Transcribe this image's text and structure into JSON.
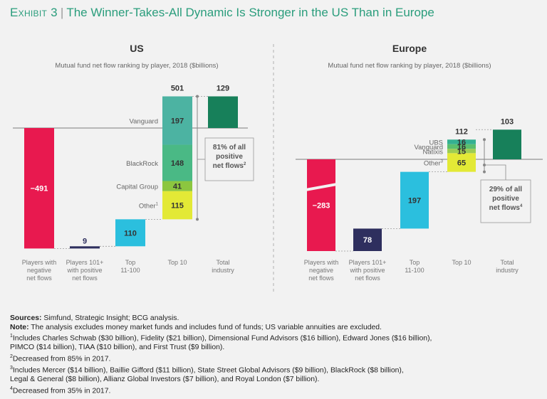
{
  "exhibit": {
    "label": "Exhibit 3",
    "title": "The Winner-Takes-All Dynamic Is Stronger in the US Than in Europe"
  },
  "colors": {
    "negative": "#e8194f",
    "players101": "#2e2f5e",
    "top11_100": "#2bbfde",
    "vanguard_us": "#4cb3a2",
    "blackrock": "#4ab985",
    "capital_group": "#8cc63f",
    "other": "#e3e936",
    "ubs": "#35b091",
    "vanguard_eu": "#5bbf6e",
    "natixis": "#9ccc54",
    "total": "#17805a",
    "accent": "#2a9d7c"
  },
  "chart_data": [
    {
      "type": "waterfall",
      "title": "US",
      "subtitle": "Mutual fund net flow ranking by player, 2018 ($billions)",
      "categories": [
        "Players with negative net flows",
        "Players 101+ with positive net flows",
        "Top 11-100",
        "Top 10",
        "Total industry"
      ],
      "values": [
        -491,
        9,
        110,
        501,
        129
      ],
      "top10_breakdown": [
        {
          "name": "Vanguard",
          "value": 197
        },
        {
          "name": "BlackRock",
          "value": 148
        },
        {
          "name": "Capital Group",
          "value": 41
        },
        {
          "name": "Other",
          "value": 115,
          "footnote": "1"
        }
      ],
      "callout": {
        "text": "81% of all positive net flows",
        "footnote": "2"
      }
    },
    {
      "type": "waterfall",
      "title": "Europe",
      "subtitle": "Mutual fund net flow ranking by player, 2018 ($billions)",
      "categories": [
        "Players with negative net flows",
        "Players 101+ with positive net flows",
        "Top 11-100",
        "Top 10",
        "Total industry"
      ],
      "values": [
        -283,
        78,
        197,
        112,
        103
      ],
      "top10_breakdown": [
        {
          "name": "UBS",
          "value": 16
        },
        {
          "name": "Vanguard",
          "value": 16
        },
        {
          "name": "Natixis",
          "value": 15
        },
        {
          "name": "Other",
          "value": 65,
          "footnote": "3"
        }
      ],
      "callout": {
        "text": "29% of all positive net flows",
        "footnote": "4"
      }
    }
  ],
  "notes": {
    "sources_label": "Sources:",
    "sources": "Simfund, Strategic Insight; BCG analysis.",
    "note_label": "Note:",
    "note": "The analysis excludes money market funds and includes fund of funds; US variable annuities are excluded.",
    "footnotes": [
      {
        "num": "1",
        "lines": [
          "Includes Charles Schwab ($30 billion), Fidelity ($21 billion), Dimensional Fund Advisors ($16 billion), Edward Jones ($16 billion),",
          "PIMCO ($14 billion), TIAA ($10 billion), and First Trust ($9 billion)."
        ]
      },
      {
        "num": "2",
        "lines": [
          "Decreased from 85% in 2017."
        ]
      },
      {
        "num": "3",
        "lines": [
          "Includes Mercer ($14 billion), Baillie Gifford ($11 billion), State Street Global Advisors ($9 billion), BlackRock ($8 billion),",
          "Legal & General ($8 billion), Allianz Global Investors ($7 billion), and Royal London ($7 billion)."
        ]
      },
      {
        "num": "4",
        "lines": [
          "Decreased from 35% in 2017."
        ]
      }
    ]
  }
}
